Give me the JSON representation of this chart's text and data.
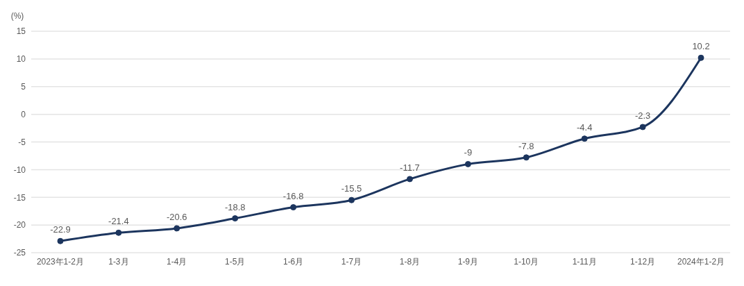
{
  "chart_data": {
    "type": "line",
    "ylabel": "(%)",
    "categories": [
      "2023年1-2月",
      "1-3月",
      "1-4月",
      "1-5月",
      "1-6月",
      "1-7月",
      "1-8月",
      "1-9月",
      "1-10月",
      "1-11月",
      "1-12月",
      "2024年1-2月"
    ],
    "series": [
      {
        "color": "#1c355e",
        "values": [
          -22.9,
          -21.4,
          -20.6,
          -18.8,
          -16.8,
          -15.5,
          -11.7,
          -9,
          -7.8,
          -4.4,
          -2.3,
          10.2
        ]
      }
    ],
    "ylim": [
      -25,
      15
    ],
    "yticks": [
      -25,
      -20,
      -15,
      -10,
      -5,
      0,
      5,
      10,
      15
    ],
    "grid": "y",
    "marker": "circle",
    "line_style": "solid",
    "data_labels": true
  }
}
